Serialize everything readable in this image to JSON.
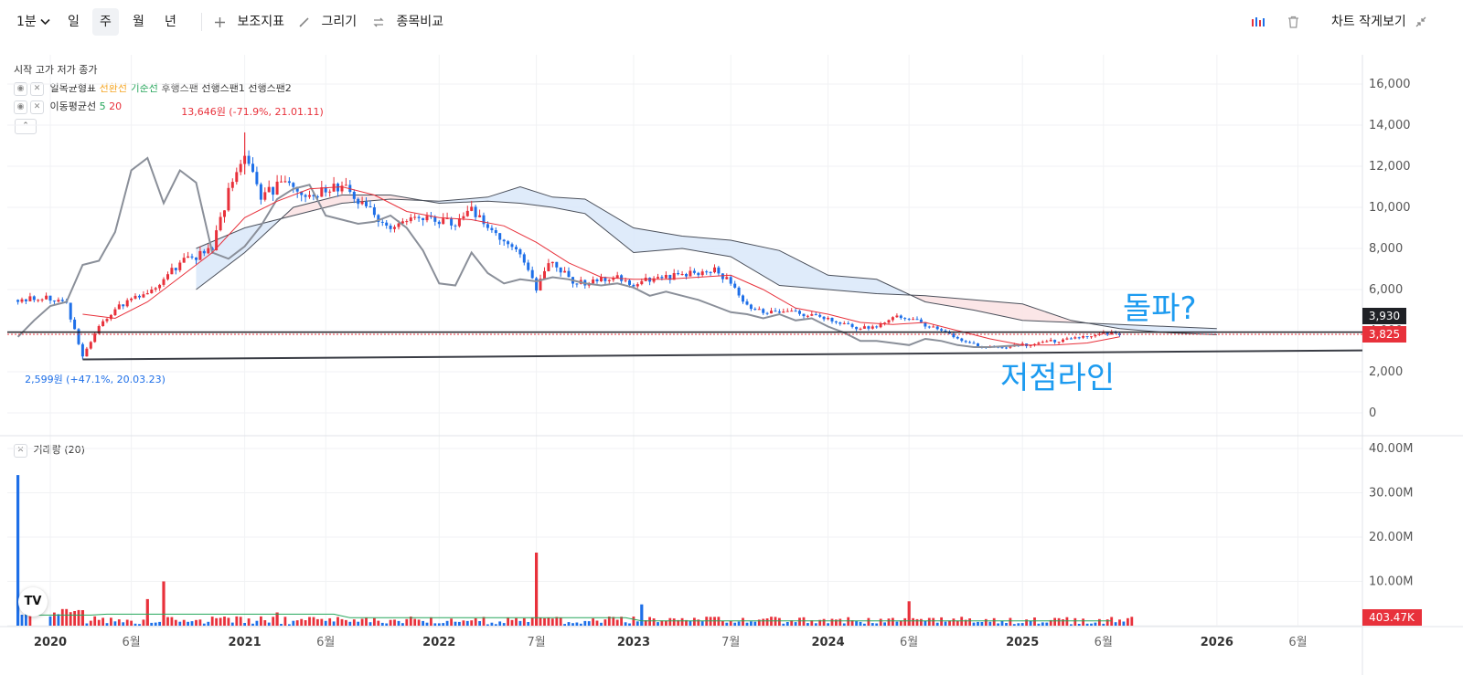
{
  "toolbar": {
    "interval": "1분",
    "periods": [
      "일",
      "주",
      "월",
      "년"
    ],
    "active_period": "주",
    "indicators_label": "보조지표",
    "draw_label": "그리기",
    "compare_label": "종목비교",
    "compact_label": "차트 작게보기"
  },
  "legend": {
    "ohlc_label": "시작 고가 저가 종가",
    "ichimoku": {
      "name": "일목균형표",
      "lines": [
        {
          "label": "전환선",
          "color": "#f5a623"
        },
        {
          "label": "기준선",
          "color": "#26a65b"
        },
        {
          "label": "후행스팬",
          "color": "#555555"
        },
        {
          "label": "선행스팬1",
          "color": "#333333"
        },
        {
          "label": "선행스팬2",
          "color": "#333333"
        }
      ]
    },
    "ma": {
      "name": "이동평균선",
      "periods": [
        {
          "label": "5",
          "color": "#26a65b"
        },
        {
          "label": "20",
          "color": "#e8313b"
        }
      ]
    },
    "volume_label": "거래량 (20)"
  },
  "annotations": {
    "high": "13,646원 (-71.9%, 21.01.11)",
    "low": "2,599원 (+47.1%, 20.03.23)",
    "breakout": "돌파?",
    "support": "저점라인"
  },
  "price_labels": {
    "level": "3,930",
    "current": "3,825",
    "volume": "403.47K"
  },
  "colors": {
    "up": "#e8313b",
    "down": "#1e6fe8",
    "annotation_blue": "#1d9bf0",
    "cloud_blue": "#dbe9f9",
    "cloud_red": "#fbe3e4"
  },
  "chart_data": {
    "type": "line",
    "x_axis": {
      "labels": [
        "2020",
        "6월",
        "2021",
        "6월",
        "2022",
        "7월",
        "2023",
        "7월",
        "2024",
        "6월",
        "2025",
        "6월",
        "2026",
        "6월"
      ],
      "dates": [
        "2020-01",
        "2020-06",
        "2021-01",
        "2021-06",
        "2022-01",
        "2022-07",
        "2023-01",
        "2023-07",
        "2024-01",
        "2024-06",
        "2025-01",
        "2025-06",
        "2026-01",
        "2026-06"
      ]
    },
    "price_axis": {
      "ticks": [
        "16,000",
        "14,000",
        "12,000",
        "10,000",
        "8,000",
        "6,000",
        "4,000",
        "2,000",
        "0"
      ],
      "ylim": [
        0,
        16000
      ]
    },
    "volume_axis": {
      "ticks": [
        "40.00M",
        "30.00M",
        "20.00M",
        "10.00M"
      ],
      "ylim": [
        0,
        40000000
      ]
    },
    "series": [
      {
        "role": "close",
        "x": [
          "2019-11",
          "2020-01",
          "2020-02",
          "2020-03",
          "2020-04",
          "2020-05",
          "2020-06",
          "2020-07",
          "2020-08",
          "2020-09",
          "2020-10",
          "2020-11",
          "2020-12",
          "2021-01",
          "2021-02",
          "2021-03",
          "2021-04",
          "2021-05",
          "2021-06",
          "2021-07",
          "2021-08",
          "2021-09",
          "2021-10",
          "2021-11",
          "2021-12",
          "2022-01",
          "2022-02",
          "2022-03",
          "2022-04",
          "2022-05",
          "2022-06",
          "2022-07",
          "2022-08",
          "2022-09",
          "2022-10",
          "2022-11",
          "2022-12",
          "2023-01",
          "2023-02",
          "2023-03",
          "2023-04",
          "2023-05",
          "2023-06",
          "2023-07",
          "2023-08",
          "2023-09",
          "2023-10",
          "2023-11",
          "2023-12",
          "2024-01",
          "2024-02",
          "2024-03",
          "2024-04",
          "2024-05",
          "2024-06",
          "2024-07",
          "2024-08",
          "2024-09",
          "2024-10",
          "2024-11",
          "2024-12",
          "2025-01",
          "2025-02",
          "2025-03",
          "2025-04",
          "2025-05",
          "2025-06",
          "2025-07"
        ],
        "y": [
          5500,
          5600,
          5300,
          2700,
          4200,
          5000,
          5600,
          5700,
          6500,
          7300,
          7600,
          8000,
          10800,
          12500,
          10500,
          11000,
          11200,
          10500,
          10800,
          11000,
          10300,
          9600,
          9000,
          9400,
          9600,
          9300,
          9200,
          9800,
          9000,
          8500,
          7800,
          6000,
          7500,
          6500,
          6300,
          6500,
          6600,
          6200,
          6500,
          6600,
          6700,
          6800,
          7000,
          6300,
          5200,
          4900,
          4800,
          4900,
          4700,
          4600,
          4300,
          4100,
          4200,
          4700,
          4600,
          4300,
          4000,
          3600,
          3300,
          3200,
          3200,
          3300,
          3400,
          3500,
          3600,
          3800,
          3825,
          3825
        ]
      },
      {
        "role": "ma20",
        "x": [
          "2020-03",
          "2020-05",
          "2020-07",
          "2020-09",
          "2020-11",
          "2021-01",
          "2021-03",
          "2021-05",
          "2021-07",
          "2021-09",
          "2021-11",
          "2022-01",
          "2022-03",
          "2022-05",
          "2022-07",
          "2022-09",
          "2022-11",
          "2023-01",
          "2023-03",
          "2023-05",
          "2023-07",
          "2023-09",
          "2023-11",
          "2024-01",
          "2024-03",
          "2024-05",
          "2024-07",
          "2024-09",
          "2024-11",
          "2025-01",
          "2025-03",
          "2025-05",
          "2025-07"
        ],
        "y": [
          4800,
          4600,
          5400,
          6600,
          7800,
          9500,
          10300,
          10900,
          11000,
          10600,
          9800,
          9500,
          9400,
          9100,
          8300,
          7300,
          6600,
          6500,
          6500,
          6600,
          6700,
          6000,
          5100,
          4800,
          4400,
          4300,
          4400,
          4000,
          3600,
          3300,
          3300,
          3400,
          3700
        ]
      },
      {
        "role": "chikou",
        "x": [
          "2019-11",
          "2019-12",
          "2020-01",
          "2020-02",
          "2020-03",
          "2020-04",
          "2020-05",
          "2020-06",
          "2020-07",
          "2020-08",
          "2020-09",
          "2020-10",
          "2020-11",
          "2020-12",
          "2021-01",
          "2021-02",
          "2021-03",
          "2021-04",
          "2021-05",
          "2021-06",
          "2021-07",
          "2021-08",
          "2021-09",
          "2021-10",
          "2021-11",
          "2021-12",
          "2022-01",
          "2022-02",
          "2022-03",
          "2022-04",
          "2022-05",
          "2022-06",
          "2022-07",
          "2022-08",
          "2022-09",
          "2022-10",
          "2022-11",
          "2022-12",
          "2023-01",
          "2023-02",
          "2023-03",
          "2023-04",
          "2023-05",
          "2023-06",
          "2023-07",
          "2023-08",
          "2023-09",
          "2023-10",
          "2023-11",
          "2023-12",
          "2024-01",
          "2024-02",
          "2024-03",
          "2024-04",
          "2024-05",
          "2024-06",
          "2024-07",
          "2024-08",
          "2024-09",
          "2024-10",
          "2024-11",
          "2024-12",
          "2025-01"
        ],
        "y": [
          3700,
          4500,
          5200,
          5400,
          7200,
          7400,
          8800,
          11800,
          12400,
          10200,
          11800,
          11200,
          7800,
          7500,
          8100,
          9100,
          10400,
          10900,
          11100,
          9600,
          9400,
          9200,
          9300,
          9600,
          9000,
          7900,
          6300,
          6200,
          7800,
          6800,
          6300,
          6500,
          6400,
          6600,
          6500,
          6300,
          6200,
          6300,
          6100,
          5700,
          5900,
          5700,
          5500,
          5200,
          4900,
          4800,
          4600,
          4800,
          4500,
          4600,
          4200,
          3900,
          3500,
          3500,
          3400,
          3300,
          3600,
          3500,
          3300,
          3200,
          3200,
          3250,
          3300
        ]
      },
      {
        "role": "senkou_a",
        "x": [
          "2020-10",
          "2021-01",
          "2021-04",
          "2021-07",
          "2021-10",
          "2022-01",
          "2022-04",
          "2022-06",
          "2022-08",
          "2022-10",
          "2023-01",
          "2023-04",
          "2023-07",
          "2023-10",
          "2024-01",
          "2024-04",
          "2024-07",
          "2024-10",
          "2025-01",
          "2025-04",
          "2025-07",
          "2025-10",
          "2026-01"
        ],
        "y": [
          6000,
          7800,
          10000,
          10600,
          10600,
          10200,
          10300,
          10200,
          10000,
          9700,
          7800,
          8000,
          7600,
          6200,
          6000,
          5800,
          5700,
          5500,
          5300,
          4500,
          4100,
          3900,
          3800
        ]
      },
      {
        "role": "senkou_b",
        "x": [
          "2020-10",
          "2021-01",
          "2021-04",
          "2021-07",
          "2021-10",
          "2022-01",
          "2022-04",
          "2022-06",
          "2022-08",
          "2022-10",
          "2023-01",
          "2023-04",
          "2023-07",
          "2023-10",
          "2024-01",
          "2024-04",
          "2024-07",
          "2024-10",
          "2025-01",
          "2025-04",
          "2025-07",
          "2025-10",
          "2026-01"
        ],
        "y": [
          8000,
          9000,
          9600,
          10200,
          10400,
          10300,
          10500,
          11000,
          10500,
          10400,
          9000,
          8600,
          8400,
          7900,
          6700,
          6500,
          5400,
          5000,
          4500,
          4400,
          4300,
          4200,
          4100
        ]
      }
    ],
    "volume": {
      "x": [
        "2019-11",
        "2020-03",
        "2020-05",
        "2020-07",
        "2020-08",
        "2020-12",
        "2021-03",
        "2021-06",
        "2022-01",
        "2022-06",
        "2022-07",
        "2022-08",
        "2023-01",
        "2023-01-W3",
        "2023-07",
        "2024-01",
        "2024-06",
        "2024-07",
        "2025-01",
        "2025-06",
        "2025-07"
      ],
      "y": [
        34000000,
        3500000,
        2500000,
        6000000,
        10000000,
        2500000,
        3000000,
        2500000,
        2000000,
        1800000,
        16500000,
        2000000,
        2000000,
        4800000,
        2000000,
        1500000,
        5500000,
        1500000,
        1000000,
        1200000,
        403470
      ]
    },
    "lines": [
      {
        "name": "support_trendline",
        "x": [
          "2020-03",
          "2026-12"
        ],
        "y": [
          2599,
          3050
        ]
      },
      {
        "name": "horizontal_level",
        "y": 3930
      }
    ],
    "extremes": [
      {
        "type": "high",
        "x": "2021-01",
        "y": 13646
      },
      {
        "type": "low",
        "x": "2020-03",
        "y": 2599
      }
    ],
    "grid": true,
    "legend_position": "top-left"
  }
}
